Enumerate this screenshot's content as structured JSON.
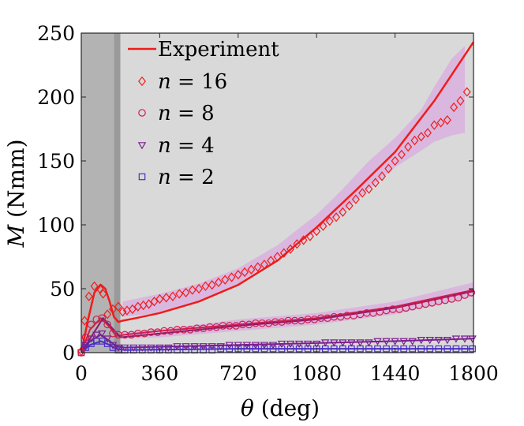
{
  "chart_data": {
    "type": "line",
    "xlabel": {
      "symbol": "θ",
      "unit": " (deg)"
    },
    "ylabel": {
      "symbol": "M",
      "unit": " (Nmm)"
    },
    "xlim": [
      0,
      1800
    ],
    "ylim": [
      0,
      250
    ],
    "xticks": [
      0,
      360,
      720,
      1080,
      1440,
      1800
    ],
    "yticks": [
      0,
      50,
      100,
      150,
      200,
      250
    ],
    "shaded_regions": [
      {
        "name": "dark-gray",
        "x": [
          0,
          150
        ],
        "color": "#b3b3b3"
      },
      {
        "name": "mid-gray",
        "x": [
          150,
          180
        ],
        "color": "#9a9a9a"
      },
      {
        "name": "light-gray",
        "x": [
          180,
          1800
        ],
        "color": "#d9d9d9"
      }
    ],
    "experiment": {
      "name": "Experiment",
      "color": "#ee1c1c",
      "x": [
        0,
        30,
        60,
        90,
        110,
        130,
        150,
        170,
        190,
        250,
        360,
        540,
        720,
        900,
        1080,
        1260,
        1440,
        1620,
        1800
      ],
      "y": [
        0,
        25,
        47,
        53,
        50,
        40,
        28,
        24,
        25,
        27,
        31,
        40,
        53,
        72,
        98,
        127,
        157,
        197,
        243
      ]
    },
    "experiment_low": {
      "color": "#8a1a6e",
      "x": [
        0,
        100,
        180,
        360,
        720,
        1080,
        1440,
        1800
      ],
      "y": [
        0,
        27,
        12,
        15,
        21,
        26,
        35,
        48
      ]
    },
    "band": {
      "name": "n=16 spread",
      "color": "#d9b2de",
      "x": [
        190,
        360,
        540,
        720,
        900,
        1080,
        1200,
        1320,
        1440,
        1560,
        1620,
        1700,
        1760
      ],
      "upper": [
        40,
        46,
        54,
        66,
        84,
        108,
        128,
        150,
        168,
        190,
        208,
        230,
        240
      ],
      "lower": [
        28,
        31,
        40,
        54,
        74,
        95,
        110,
        128,
        145,
        158,
        165,
        170,
        172
      ]
    },
    "band_small": {
      "color": "#d9b2de",
      "x": [
        190,
        360,
        720,
        1080,
        1440,
        1800
      ],
      "upper": [
        16,
        18,
        26,
        31,
        40,
        55
      ],
      "lower": [
        11,
        12,
        17,
        22,
        30,
        44
      ]
    },
    "series": [
      {
        "name": "n = 16",
        "n": "16",
        "marker": "diamond",
        "color": "#ee1c1c",
        "x": [
          0,
          15,
          35,
          60,
          85,
          100,
          120,
          145,
          170,
          190,
          210,
          235,
          260,
          285,
          310,
          335,
          360,
          390,
          420,
          450,
          480,
          510,
          540,
          570,
          600,
          630,
          660,
          690,
          720,
          750,
          780,
          810,
          840,
          870,
          900,
          930,
          960,
          990,
          1020,
          1050,
          1080,
          1110,
          1140,
          1170,
          1200,
          1230,
          1260,
          1290,
          1320,
          1350,
          1380,
          1410,
          1440,
          1470,
          1500,
          1530,
          1560,
          1590,
          1620,
          1650,
          1680,
          1710,
          1740,
          1770
        ],
        "y": [
          1,
          25,
          44,
          52,
          50,
          46,
          30,
          34,
          36,
          32,
          33,
          34,
          36,
          37,
          38,
          40,
          42,
          43,
          44,
          46,
          47,
          49,
          50,
          52,
          53,
          55,
          57,
          59,
          61,
          63,
          65,
          67,
          69,
          72,
          75,
          78,
          81,
          85,
          88,
          91,
          95,
          99,
          103,
          106,
          110,
          115,
          120,
          125,
          128,
          133,
          138,
          144,
          150,
          155,
          161,
          166,
          169,
          172,
          178,
          180,
          182,
          192,
          197,
          204
        ]
      },
      {
        "name": "n = 8",
        "n": "8",
        "marker": "circle",
        "color": "#cc1f4e",
        "x": [
          0,
          20,
          45,
          70,
          95,
          120,
          145,
          170,
          200,
          230,
          260,
          290,
          320,
          350,
          380,
          410,
          440,
          470,
          500,
          530,
          560,
          590,
          620,
          650,
          680,
          710,
          740,
          770,
          800,
          830,
          860,
          890,
          920,
          950,
          980,
          1010,
          1040,
          1070,
          1100,
          1130,
          1160,
          1190,
          1220,
          1250,
          1280,
          1310,
          1340,
          1370,
          1400,
          1430,
          1460,
          1490,
          1520,
          1550,
          1580,
          1610,
          1640,
          1670,
          1700,
          1730,
          1760,
          1790
        ],
        "y": [
          0,
          12,
          22,
          26,
          27,
          22,
          15,
          14,
          14,
          14,
          15,
          15,
          16,
          16,
          17,
          17,
          18,
          18,
          18,
          19,
          19,
          20,
          20,
          21,
          21,
          21,
          22,
          22,
          23,
          23,
          23,
          24,
          24,
          25,
          25,
          25,
          26,
          26,
          27,
          27,
          28,
          28,
          29,
          29,
          30,
          31,
          31,
          32,
          33,
          34,
          34,
          35,
          36,
          37,
          38,
          39,
          40,
          41,
          42,
          43,
          45,
          47
        ]
      },
      {
        "name": "n = 4",
        "n": "4",
        "marker": "triangle-down",
        "color": "#7b1f8f",
        "x": [
          0,
          20,
          45,
          70,
          95,
          120,
          145,
          170,
          200,
          240,
          280,
          320,
          360,
          400,
          440,
          480,
          520,
          560,
          600,
          640,
          680,
          720,
          760,
          800,
          840,
          880,
          920,
          960,
          1000,
          1040,
          1080,
          1120,
          1160,
          1200,
          1240,
          1280,
          1320,
          1360,
          1400,
          1440,
          1480,
          1520,
          1560,
          1600,
          1640,
          1680,
          1720,
          1760,
          1795
        ],
        "y": [
          0,
          6,
          11,
          14,
          15,
          11,
          6,
          4,
          4,
          4,
          4,
          4,
          4,
          4,
          5,
          5,
          5,
          5,
          5,
          5,
          6,
          6,
          6,
          6,
          6,
          6,
          7,
          7,
          7,
          7,
          7,
          8,
          8,
          8,
          8,
          8,
          8,
          9,
          9,
          9,
          9,
          9,
          10,
          10,
          10,
          10,
          11,
          11,
          11
        ]
      },
      {
        "name": "n = 2",
        "n": "2",
        "marker": "square",
        "color": "#4a2fc4",
        "x": [
          0,
          20,
          45,
          70,
          95,
          120,
          145,
          170,
          200,
          240,
          280,
          320,
          360,
          400,
          440,
          480,
          520,
          560,
          600,
          640,
          680,
          720,
          760,
          800,
          840,
          880,
          920,
          960,
          1000,
          1040,
          1080,
          1120,
          1160,
          1200,
          1240,
          1280,
          1320,
          1360,
          1400,
          1440,
          1480,
          1520,
          1560,
          1600,
          1640,
          1680,
          1720,
          1760,
          1795
        ],
        "y": [
          0,
          4,
          7,
          9,
          9,
          7,
          4,
          2,
          2,
          2,
          2,
          2,
          2,
          2,
          2,
          2,
          2,
          2,
          2,
          3,
          3,
          3,
          3,
          3,
          3,
          3,
          3,
          3,
          3,
          3,
          3,
          3,
          3,
          3,
          3,
          3,
          3,
          3,
          3,
          3,
          3,
          3,
          3,
          3,
          3,
          3,
          3,
          3,
          3
        ]
      }
    ],
    "series_fit_lines": [
      {
        "name": "n=8-fit",
        "color": "#cc1f4e",
        "x": [
          0,
          40,
          90,
          130,
          160,
          200,
          360,
          720,
          1080,
          1440,
          1800
        ],
        "y": [
          0,
          18,
          27,
          20,
          13,
          14,
          17,
          22,
          27,
          36,
          49
        ]
      },
      {
        "name": "n=4-fit",
        "color": "#7b1f8f",
        "x": [
          0,
          40,
          90,
          130,
          160,
          200,
          720,
          1440,
          1800
        ],
        "y": [
          0,
          9,
          14,
          9,
          5,
          4,
          6,
          9,
          11
        ]
      },
      {
        "name": "n=2-fit",
        "color": "#4a2fc4",
        "x": [
          0,
          40,
          90,
          130,
          160,
          200,
          720,
          1440,
          1800
        ],
        "y": [
          0,
          6,
          9,
          6,
          3,
          2,
          3,
          3,
          3
        ]
      }
    ],
    "legend": {
      "placement": "top-left",
      "entries": [
        {
          "label": "Experiment",
          "kind": "line",
          "color": "#ee1c1c"
        },
        {
          "label_prefix": "n",
          "label_eq": " = ",
          "label_value": "16",
          "kind": "diamond",
          "color": "#ee1c1c"
        },
        {
          "label_prefix": "n",
          "label_eq": " = ",
          "label_value": "8",
          "kind": "circle",
          "color": "#cc1f4e"
        },
        {
          "label_prefix": "n",
          "label_eq": " = ",
          "label_value": "4",
          "kind": "triangle-down",
          "color": "#7b1f8f"
        },
        {
          "label_prefix": "n",
          "label_eq": " = ",
          "label_value": "2",
          "kind": "square",
          "color": "#4a2fc4"
        }
      ]
    }
  }
}
